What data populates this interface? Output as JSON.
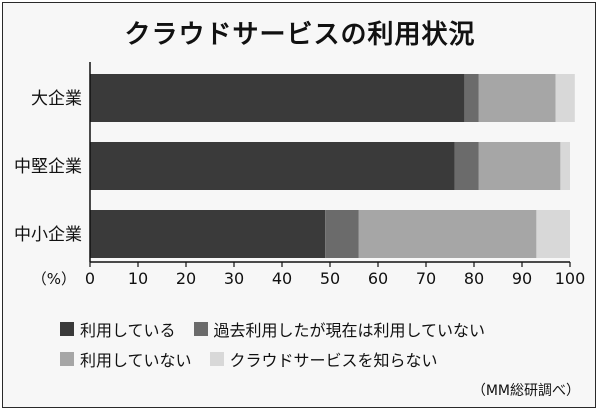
{
  "chart_data": {
    "type": "bar",
    "orientation": "horizontal",
    "stacked": true,
    "title": "クラウドサービスの利用状況",
    "categories": [
      "大企業",
      "中堅企業",
      "中小企業"
    ],
    "series": [
      {
        "name": "利用している",
        "values": [
          78,
          76,
          49
        ],
        "color": "#3a3a3a"
      },
      {
        "name": "過去利用したが現在は利用していない",
        "values": [
          3,
          5,
          7
        ],
        "color": "#6b6b6b"
      },
      {
        "name": "利用していない",
        "values": [
          16,
          17,
          37
        ],
        "color": "#a6a6a6"
      },
      {
        "name": "クラウドサービスを知らない",
        "values": [
          4,
          2,
          7
        ],
        "color": "#d8d8d8"
      }
    ],
    "xlim": [
      0,
      100
    ],
    "xticks": [
      "0",
      "10",
      "20",
      "30",
      "40",
      "50",
      "60",
      "70",
      "80",
      "90",
      "100"
    ],
    "x_unit_label": "（%）",
    "grid": false,
    "legend_placement": "bottom",
    "source": "（MM総研調べ）"
  }
}
